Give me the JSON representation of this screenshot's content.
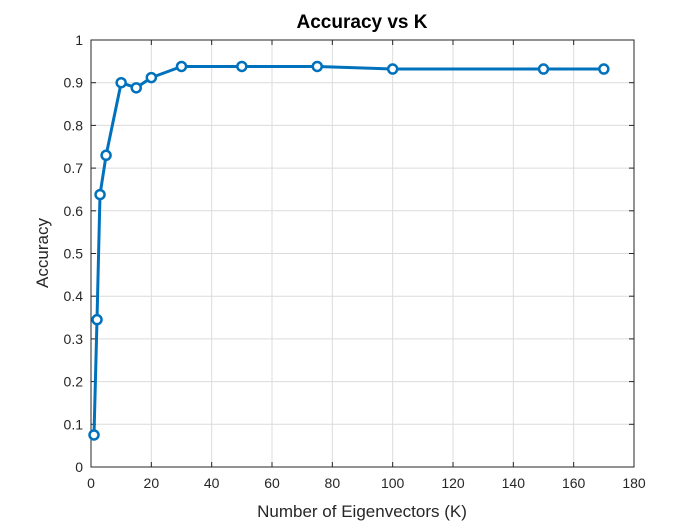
{
  "chart_data": {
    "type": "line",
    "title": "Accuracy vs K",
    "xlabel": "Number of Eigenvectors (K)",
    "ylabel": "Accuracy",
    "xlim": [
      0,
      180
    ],
    "ylim": [
      0,
      1
    ],
    "xticks": [
      0,
      20,
      40,
      60,
      80,
      100,
      120,
      140,
      160,
      180
    ],
    "yticks": [
      0,
      0.1,
      0.2,
      0.3,
      0.4,
      0.5,
      0.6,
      0.7,
      0.8,
      0.9,
      1
    ],
    "xtick_labels": [
      "0",
      "20",
      "40",
      "60",
      "80",
      "100",
      "120",
      "140",
      "160",
      "180"
    ],
    "ytick_labels": [
      "0",
      "0.1",
      "0.2",
      "0.3",
      "0.4",
      "0.5",
      "0.6",
      "0.7",
      "0.8",
      "0.9",
      "1"
    ],
    "grid": true,
    "marker": "circle",
    "series": [
      {
        "color": "#0072BD",
        "x": [
          1,
          2,
          3,
          5,
          10,
          15,
          20,
          30,
          50,
          75,
          100,
          150,
          170
        ],
        "y": [
          0.075,
          0.345,
          0.638,
          0.73,
          0.9,
          0.888,
          0.912,
          0.938,
          0.938,
          0.938,
          0.932,
          0.932,
          0.932
        ]
      }
    ]
  }
}
